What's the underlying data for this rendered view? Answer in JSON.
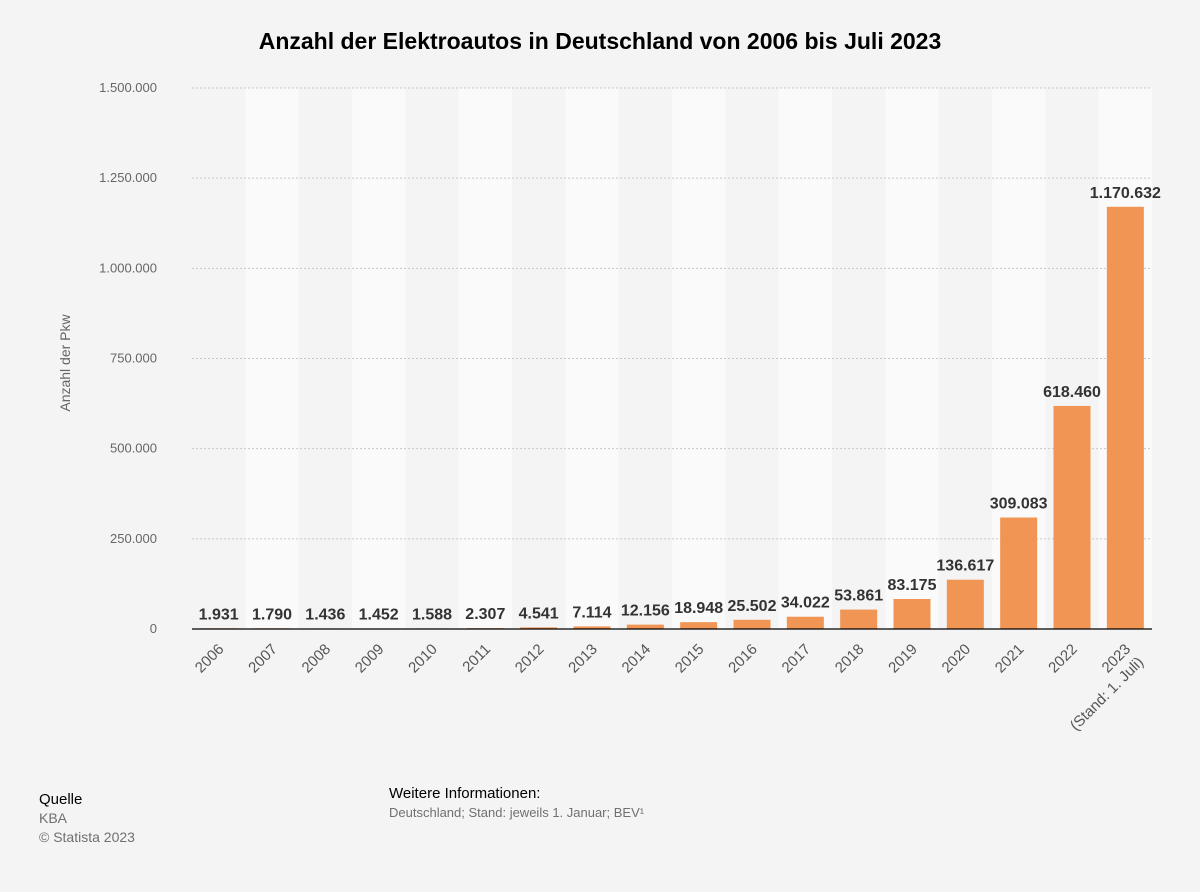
{
  "chart_data": {
    "type": "bar",
    "title": "Anzahl der Elektroautos in Deutschland von 2006 bis Juli 2023",
    "xlabel": "",
    "ylabel": "Anzahl der Pkw",
    "ylim": [
      0,
      1500000
    ],
    "yticks": [
      0,
      250000,
      500000,
      750000,
      1000000,
      1250000,
      1500000
    ],
    "ytick_labels": [
      "0",
      "250.000",
      "500.000",
      "750.000",
      "1.000.000",
      "1.250.000",
      "1.500.000"
    ],
    "grid": true,
    "categories": [
      "2006",
      "2007",
      "2008",
      "2009",
      "2010",
      "2011",
      "2012",
      "2013",
      "2014",
      "2015",
      "2016",
      "2017",
      "2018",
      "2019",
      "2020",
      "2021",
      "2022",
      "2023"
    ],
    "category_sublabels": [
      "",
      "",
      "",
      "",
      "",
      "",
      "",
      "",
      "",
      "",
      "",
      "",
      "",
      "",
      "",
      "",
      "",
      "(Stand: 1. Juli)"
    ],
    "values": [
      1931,
      1790,
      1436,
      1452,
      1588,
      2307,
      4541,
      7114,
      12156,
      18948,
      25502,
      34022,
      53861,
      83175,
      136617,
      309083,
      618460,
      1170632
    ],
    "value_labels": [
      "1.931",
      "1.790",
      "1.436",
      "1.452",
      "1.588",
      "2.307",
      "4.541",
      "7.114",
      "12.156",
      "18.948",
      "25.502",
      "34.022",
      "53.861",
      "83.175",
      "136.617",
      "309.083",
      "618.460",
      "1.170.632"
    ],
    "bar_color": "#f09553"
  },
  "footer": {
    "source_heading": "Quelle",
    "source_name": "KBA",
    "copyright": "© Statista 2023",
    "info_heading": "Weitere Informationen:",
    "info_text": "Deutschland; Stand: jeweils 1. Januar; BEV¹"
  }
}
